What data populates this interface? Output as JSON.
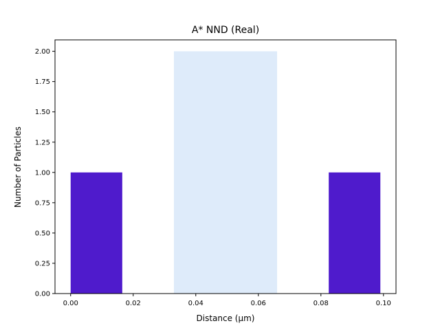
{
  "chart_data": {
    "type": "bar",
    "title": "A* NND (Real)",
    "xlabel": "Distance (μm)",
    "ylabel": "Number of Particles",
    "xlim": [
      -0.005,
      0.104
    ],
    "ylim": [
      0,
      2.0
    ],
    "x_ticks": [
      "0.00",
      "0.02",
      "0.04",
      "0.06",
      "0.08",
      "0.10"
    ],
    "y_ticks": [
      "0.00",
      "0.25",
      "0.50",
      "0.75",
      "1.00",
      "1.25",
      "1.50",
      "1.75",
      "2.00"
    ],
    "grid": false,
    "bins": [
      {
        "start": 0.0,
        "end": 0.0165,
        "count": 1,
        "color": "#4f1bcc"
      },
      {
        "start": 0.033,
        "end": 0.066,
        "count": 2,
        "color": "#deebfa"
      },
      {
        "start": 0.0825,
        "end": 0.099,
        "count": 1,
        "color": "#4f1bcc"
      }
    ]
  }
}
